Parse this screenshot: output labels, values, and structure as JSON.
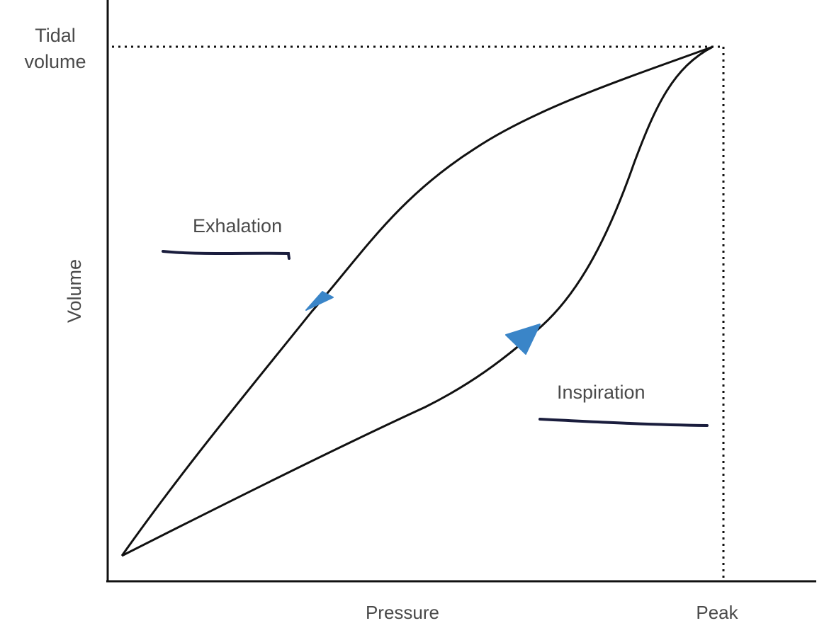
{
  "diagram": {
    "labels": {
      "tidal_volume_line1": "Tidal",
      "tidal_volume_line2": "volume",
      "y_axis": "Volume",
      "x_axis": "Pressure",
      "peak": "Peak",
      "exhalation": "Exhalation",
      "inspiration": "Inspiration"
    },
    "colors": {
      "curve": "#111111",
      "axis": "#111111",
      "arrow": "#3a85c8",
      "handwritten_underline": "#1a1d3d",
      "label": "#4a4a4a"
    },
    "curves": [
      {
        "name": "inspiration-limb",
        "direction": "up"
      },
      {
        "name": "exhalation-limb",
        "direction": "down"
      }
    ]
  }
}
